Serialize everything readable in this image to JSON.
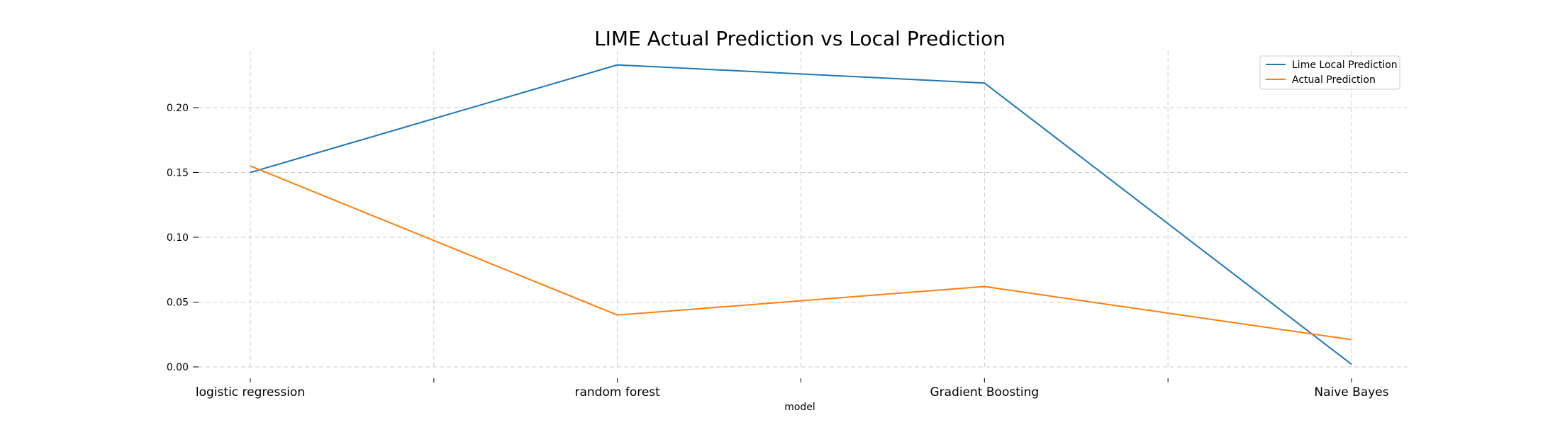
{
  "chart_data": {
    "type": "line",
    "title": "LIME Actual Prediction vs Local Prediction",
    "xlabel": "model",
    "ylabel": "",
    "categories": [
      "logistic regression",
      "random forest",
      "Gradient Boosting",
      "Naive Bayes"
    ],
    "x_tick_labels": [
      "logistic regression",
      "",
      "random forest",
      "",
      "Gradient Boosting",
      "",
      "Naive Bayes"
    ],
    "yticks": [
      "0.00",
      "0.05",
      "0.10",
      "0.15",
      "0.20"
    ],
    "ylim": [
      -0.004,
      0.243
    ],
    "grid": true,
    "legend_position": "top-right",
    "series": [
      {
        "name": "Lime Local Prediction",
        "color": "#1f77b4",
        "values": [
          0.15,
          0.233,
          0.219,
          0.002
        ]
      },
      {
        "name": "Actual Prediction",
        "color": "#ff7f0e",
        "values": [
          0.155,
          0.04,
          0.062,
          0.021
        ]
      }
    ]
  }
}
